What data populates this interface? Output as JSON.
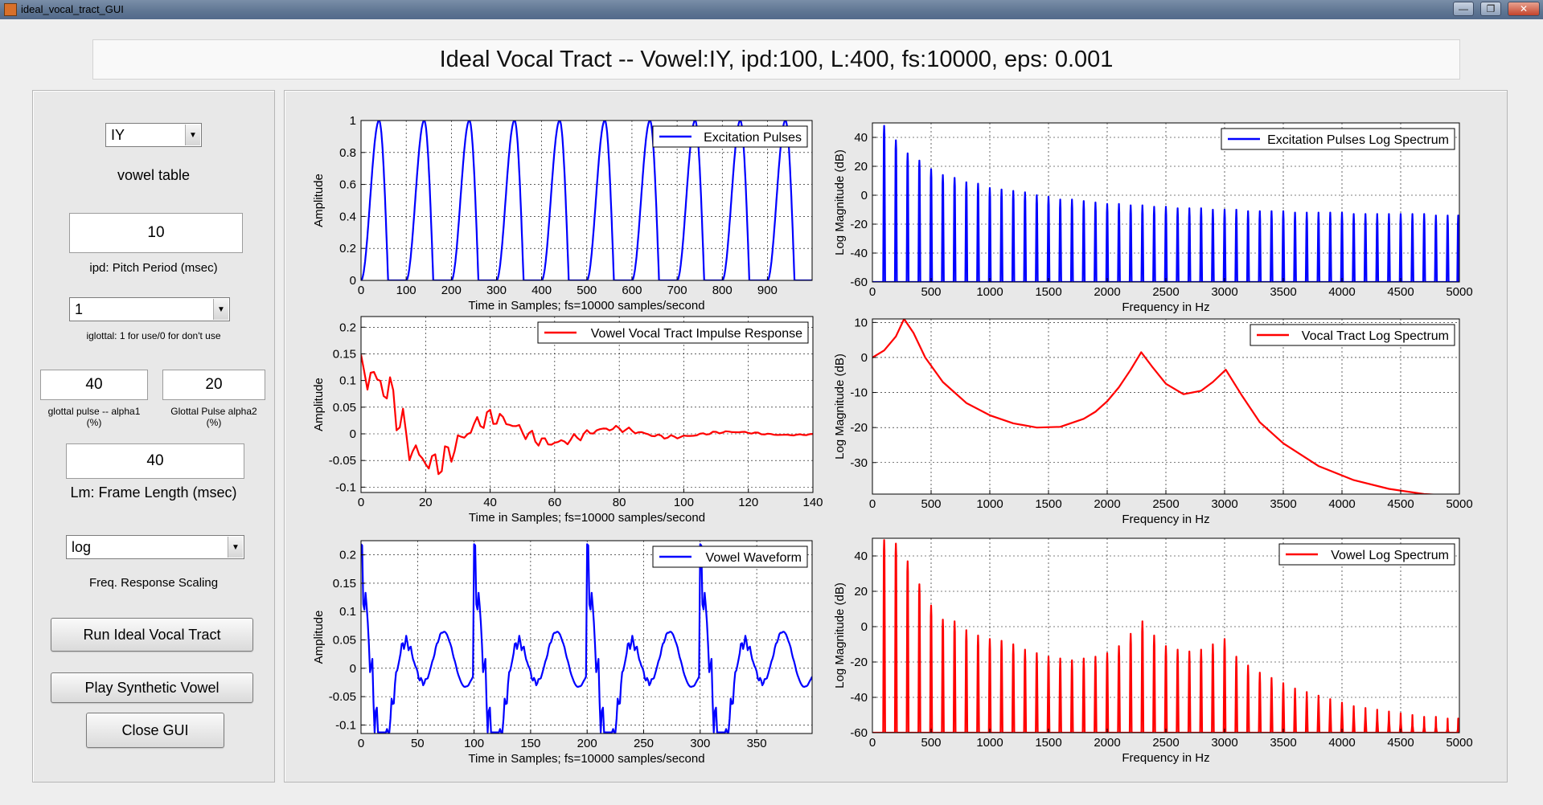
{
  "window": {
    "title": "ideal_vocal_tract_GUI",
    "buttons": {
      "minimize": "—",
      "maximize": "❐",
      "close": "✕"
    }
  },
  "header": {
    "title": "Ideal Vocal Tract -- Vowel:IY, ipd:100, L:400, fs:10000, eps: 0.001"
  },
  "controls": {
    "vowel_select": {
      "value": "IY",
      "label": "vowel table"
    },
    "pitch_period": {
      "value": "10",
      "label": "ipd: Pitch Period (msec)"
    },
    "iglottal_select": {
      "value": "1",
      "label": "iglottal: 1 for use/0 for don't use"
    },
    "alpha1": {
      "value": "40",
      "label_line1": "glottal pulse -- alpha1",
      "label_line2": "(%)"
    },
    "alpha2": {
      "value": "20",
      "label_line1": "Glottal Pulse alpha2",
      "label_line2": "(%)"
    },
    "frame_length": {
      "value": "40",
      "label": "Lm: Frame Length (msec)"
    },
    "scaling_select": {
      "value": "log",
      "label": "Freq. Response Scaling"
    },
    "run_button": "Run Ideal Vocal Tract",
    "play_button": "Play Synthetic Vowel",
    "close_button": "Close GUI"
  },
  "colors": {
    "blue": "#0000ff",
    "red": "#ff0000",
    "grid": "#000000",
    "panel": "#e8e8e8"
  },
  "chart_data": [
    {
      "type": "line",
      "legend": "Excitation Pulses",
      "xlabel": "Time in Samples; fs=10000 samples/second",
      "ylabel": "Amplitude",
      "xlim": [
        0,
        999
      ],
      "ylim": [
        0,
        1
      ],
      "xticks": [
        0,
        100,
        200,
        300,
        400,
        500,
        600,
        700,
        800,
        900
      ],
      "yticks": [
        0,
        0.2,
        0.4,
        0.6,
        0.8,
        1
      ],
      "color": "#0000ff",
      "signal": {
        "kind": "glottal_pulse_train",
        "period": 100,
        "alpha1_pct": 40,
        "alpha2_pct": 20
      }
    },
    {
      "type": "line",
      "legend": "Excitation Pulses Log Spectrum",
      "xlabel": "Frequency in Hz",
      "ylabel": "Log Magnitude (dB)",
      "xlim": [
        0,
        5000
      ],
      "ylim": [
        -60,
        50
      ],
      "xticks": [
        0,
        500,
        1000,
        1500,
        2000,
        2500,
        3000,
        3500,
        4000,
        4500,
        5000
      ],
      "yticks": [
        -60,
        -40,
        -20,
        0,
        20,
        40
      ],
      "color": "#0000ff",
      "harmonic_spacing": 100,
      "harmonic_peaks": [
        [
          100,
          48
        ],
        [
          200,
          38
        ],
        [
          300,
          29
        ],
        [
          400,
          24
        ],
        [
          500,
          18
        ],
        [
          600,
          14
        ],
        [
          700,
          12
        ],
        [
          800,
          9
        ],
        [
          900,
          8
        ],
        [
          1000,
          5
        ],
        [
          1100,
          4
        ],
        [
          1200,
          3
        ],
        [
          1300,
          2
        ],
        [
          1400,
          0
        ],
        [
          1500,
          -1
        ],
        [
          1600,
          -3
        ],
        [
          1700,
          -3
        ],
        [
          1800,
          -4
        ],
        [
          1900,
          -5
        ],
        [
          2000,
          -6
        ],
        [
          2100,
          -6
        ],
        [
          2200,
          -7
        ],
        [
          2300,
          -7
        ],
        [
          2400,
          -8
        ],
        [
          2500,
          -8
        ],
        [
          2600,
          -9
        ],
        [
          2700,
          -9
        ],
        [
          2800,
          -9
        ],
        [
          2900,
          -10
        ],
        [
          3000,
          -10
        ],
        [
          3100,
          -10
        ],
        [
          3200,
          -11
        ],
        [
          3300,
          -11
        ],
        [
          3400,
          -11
        ],
        [
          3500,
          -11
        ],
        [
          3600,
          -12
        ],
        [
          3700,
          -12
        ],
        [
          3800,
          -12
        ],
        [
          3900,
          -12
        ],
        [
          4000,
          -12
        ],
        [
          4100,
          -13
        ],
        [
          4200,
          -13
        ],
        [
          4300,
          -13
        ],
        [
          4400,
          -13
        ],
        [
          4500,
          -13
        ],
        [
          4600,
          -13
        ],
        [
          4700,
          -13
        ],
        [
          4800,
          -14
        ],
        [
          4900,
          -14
        ],
        [
          4990,
          -14
        ]
      ]
    },
    {
      "type": "line",
      "legend": "Vowel Vocal Tract Impulse Response",
      "xlabel": "Time in Samples; fs=10000 samples/second",
      "ylabel": "Amplitude",
      "xlim": [
        0,
        140
      ],
      "ylim": [
        -0.11,
        0.22
      ],
      "xticks": [
        0,
        20,
        40,
        60,
        80,
        100,
        120,
        140
      ],
      "yticks": [
        -0.1,
        -0.05,
        0,
        0.05,
        0.1,
        0.15,
        0.2
      ],
      "color": "#ff0000",
      "signal": {
        "kind": "vocal_tract_impulse",
        "formants_hz": [
          270,
          2290,
          3010
        ]
      }
    },
    {
      "type": "line",
      "legend": "Vocal Tract Log Spectrum",
      "xlabel": "Frequency in Hz",
      "ylabel": "Log Magnitude (dB)",
      "xlim": [
        0,
        5000
      ],
      "ylim": [
        -39,
        11
      ],
      "xticks": [
        0,
        500,
        1000,
        1500,
        2000,
        2500,
        3000,
        3500,
        4000,
        4500,
        5000
      ],
      "yticks": [
        -30,
        -20,
        -10,
        0,
        10
      ],
      "color": "#ff0000",
      "x": [
        0,
        100,
        200,
        270,
        350,
        450,
        600,
        800,
        1000,
        1200,
        1400,
        1600,
        1800,
        1900,
        2000,
        2100,
        2200,
        2290,
        2380,
        2500,
        2650,
        2800,
        2900,
        3010,
        3150,
        3300,
        3500,
        3800,
        4100,
        4400,
        4700,
        5000
      ],
      "y": [
        0,
        2,
        6,
        11,
        7,
        0,
        -7,
        -13,
        -16.5,
        -18.8,
        -20,
        -19.8,
        -17.5,
        -15.5,
        -12.5,
        -8.5,
        -3.5,
        1.5,
        -2.5,
        -7.5,
        -10.5,
        -9.5,
        -7,
        -3.5,
        -11,
        -18.5,
        -24.5,
        -31,
        -35,
        -37.5,
        -39,
        -39.5
      ]
    },
    {
      "type": "line",
      "legend": "Vowel Waveform",
      "xlabel": "Time in Samples; fs=10000 samples/second",
      "ylabel": "Amplitude",
      "xlim": [
        0,
        399
      ],
      "ylim": [
        -0.115,
        0.225
      ],
      "xticks": [
        0,
        50,
        100,
        150,
        200,
        250,
        300,
        350
      ],
      "yticks": [
        -0.1,
        -0.05,
        0,
        0.05,
        0.1,
        0.15,
        0.2
      ],
      "color": "#0000ff",
      "signal": {
        "kind": "vowel_waveform",
        "period": 100
      }
    },
    {
      "type": "line",
      "legend": "Vowel Log Spectrum",
      "xlabel": "Frequency in Hz",
      "ylabel": "Log Magnitude (dB)",
      "xlim": [
        0,
        5000
      ],
      "ylim": [
        -60,
        50
      ],
      "xticks": [
        0,
        500,
        1000,
        1500,
        2000,
        2500,
        3000,
        3500,
        4000,
        4500,
        5000
      ],
      "yticks": [
        -60,
        -40,
        -20,
        0,
        20,
        40
      ],
      "color": "#ff0000",
      "harmonic_spacing": 100,
      "harmonic_peaks": [
        [
          100,
          49
        ],
        [
          200,
          47
        ],
        [
          300,
          37
        ],
        [
          400,
          24
        ],
        [
          500,
          12
        ],
        [
          600,
          4
        ],
        [
          700,
          3
        ],
        [
          800,
          -2
        ],
        [
          900,
          -5
        ],
        [
          1000,
          -7
        ],
        [
          1100,
          -8
        ],
        [
          1200,
          -10
        ],
        [
          1300,
          -13
        ],
        [
          1400,
          -15
        ],
        [
          1500,
          -17
        ],
        [
          1600,
          -18
        ],
        [
          1700,
          -19
        ],
        [
          1800,
          -18
        ],
        [
          1900,
          -17
        ],
        [
          2000,
          -15
        ],
        [
          2100,
          -11
        ],
        [
          2200,
          -4
        ],
        [
          2300,
          3
        ],
        [
          2400,
          -5
        ],
        [
          2500,
          -11
        ],
        [
          2600,
          -13
        ],
        [
          2700,
          -14
        ],
        [
          2800,
          -13
        ],
        [
          2900,
          -10
        ],
        [
          3000,
          -7
        ],
        [
          3100,
          -17
        ],
        [
          3200,
          -22
        ],
        [
          3300,
          -26
        ],
        [
          3400,
          -29
        ],
        [
          3500,
          -32
        ],
        [
          3600,
          -35
        ],
        [
          3700,
          -37
        ],
        [
          3800,
          -39
        ],
        [
          3900,
          -41
        ],
        [
          4000,
          -43
        ],
        [
          4100,
          -45
        ],
        [
          4200,
          -46
        ],
        [
          4300,
          -47
        ],
        [
          4400,
          -48
        ],
        [
          4500,
          -49
        ],
        [
          4600,
          -50
        ],
        [
          4700,
          -51
        ],
        [
          4800,
          -51
        ],
        [
          4900,
          -52
        ],
        [
          4990,
          -52
        ]
      ]
    }
  ]
}
